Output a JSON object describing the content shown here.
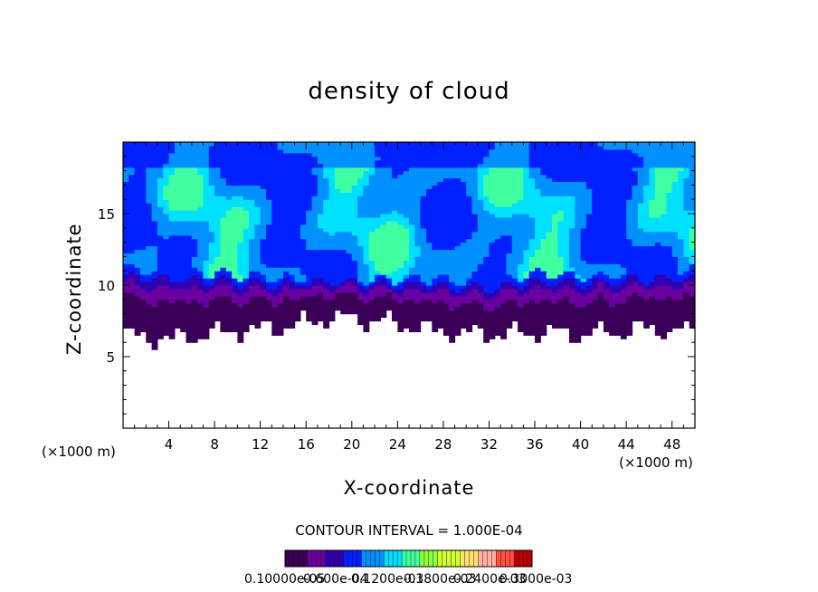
{
  "chart_data": {
    "type": "heatmap",
    "title": "density of cloud",
    "xlabel": "X-coordinate",
    "ylabel": "Z-coordinate",
    "x_unit_label": "(×1000 m)",
    "xlim": [
      0,
      50
    ],
    "ylim": [
      0,
      20
    ],
    "x_ticks": [
      4,
      8,
      12,
      16,
      20,
      24,
      28,
      32,
      36,
      40,
      44,
      48
    ],
    "y_ticks": [
      5,
      10,
      15
    ],
    "contour_interval": "CONTOUR INTERVAL = 1.000E-04",
    "colorbar_labels": [
      "0.10000e-05",
      "0.600e-04",
      "0.1200e-03",
      "0.1800e-03",
      "0.2400e-03",
      "0.3000e-03"
    ],
    "colormap": [
      "#3a0058",
      "#6a00a0",
      "#3000b0",
      "#0020ff",
      "#0090ff",
      "#00e0ff",
      "#40ffa0",
      "#90ff40",
      "#d0ff30",
      "#ffe070",
      "#ffb0a0",
      "#ff5040",
      "#c00000"
    ],
    "field": {
      "cloud_base_km": [
        6.5,
        6.2,
        6.8,
        7.0,
        7.8,
        7.5,
        6.8,
        6.6,
        6.7,
        6.6,
        7.0,
        6.7
      ],
      "cloud_top_km": 20,
      "dense_layer_top_km": [
        11.2,
        11.0,
        10.8,
        10.5,
        10.6,
        10.4,
        10.5,
        10.2,
        10.8,
        10.6,
        10.9,
        11.0
      ]
    }
  }
}
